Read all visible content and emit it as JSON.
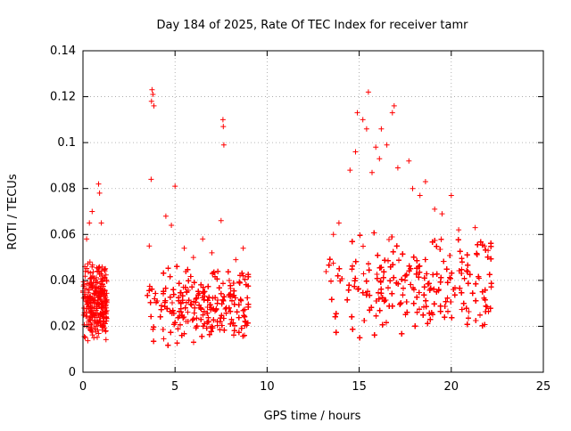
{
  "chart_data": {
    "type": "scatter",
    "title": "Day 184 of 2025, Rate Of TEC Index for receiver tamr",
    "xlabel": "GPS time / hours",
    "ylabel": "ROTI / TECUs",
    "xlim": [
      0,
      25
    ],
    "ylim": [
      0,
      0.14
    ],
    "xticks": [
      0,
      5,
      10,
      15,
      20,
      25
    ],
    "yticks": [
      0,
      0.02,
      0.04,
      0.06,
      0.08,
      0.1,
      0.12,
      0.14
    ],
    "xtick_labels": [
      "0",
      "5",
      "10",
      "15",
      "20",
      "25"
    ],
    "ytick_labels": [
      "0",
      "0.02",
      "0.04",
      "0.06",
      "0.08",
      "0.1",
      "0.12",
      "0.14"
    ],
    "grid": true,
    "marker": "plus",
    "color": "#ff0000",
    "segments": [
      {
        "x_range": [
          0.0,
          1.3
        ],
        "y_base": 0.022,
        "y_spread": 0.018
      },
      {
        "x_range": [
          3.5,
          9.0
        ],
        "y_base": 0.02,
        "y_spread": 0.018
      },
      {
        "x_range": [
          13.2,
          22.2
        ],
        "y_base": 0.026,
        "y_spread": 0.024
      }
    ],
    "outliers": [
      [
        3.75,
        0.123
      ],
      [
        3.8,
        0.121
      ],
      [
        3.72,
        0.118
      ],
      [
        3.85,
        0.116
      ],
      [
        7.6,
        0.11
      ],
      [
        7.62,
        0.107
      ],
      [
        7.65,
        0.099
      ],
      [
        15.5,
        0.122
      ],
      [
        16.9,
        0.116
      ],
      [
        16.8,
        0.113
      ],
      [
        14.9,
        0.113
      ],
      [
        15.2,
        0.11
      ],
      [
        15.4,
        0.106
      ],
      [
        16.2,
        0.106
      ],
      [
        17.7,
        0.092
      ],
      [
        16.5,
        0.099
      ],
      [
        15.9,
        0.098
      ],
      [
        16.1,
        0.093
      ],
      [
        0.85,
        0.082
      ],
      [
        0.9,
        0.078
      ],
      [
        5.0,
        0.081
      ],
      [
        20.0,
        0.077
      ],
      [
        3.7,
        0.084
      ],
      [
        0.35,
        0.065
      ],
      [
        0.5,
        0.07
      ],
      [
        1.0,
        0.065
      ],
      [
        7.5,
        0.066
      ],
      [
        4.5,
        0.068
      ],
      [
        4.8,
        0.064
      ],
      [
        6.5,
        0.058
      ],
      [
        18.6,
        0.083
      ],
      [
        19.1,
        0.071
      ],
      [
        19.5,
        0.069
      ],
      [
        21.3,
        0.063
      ],
      [
        14.5,
        0.088
      ],
      [
        14.8,
        0.096
      ],
      [
        15.7,
        0.087
      ],
      [
        17.1,
        0.089
      ],
      [
        17.9,
        0.08
      ],
      [
        18.3,
        0.077
      ],
      [
        13.6,
        0.06
      ],
      [
        13.9,
        0.065
      ],
      [
        20.4,
        0.062
      ],
      [
        21.8,
        0.055
      ],
      [
        22.0,
        0.053
      ],
      [
        8.7,
        0.054
      ],
      [
        0.1,
        0.046
      ],
      [
        0.2,
        0.058
      ],
      [
        1.2,
        0.045
      ],
      [
        5.5,
        0.054
      ],
      [
        6.0,
        0.05
      ],
      [
        7.0,
        0.052
      ],
      [
        8.3,
        0.049
      ],
      [
        3.6,
        0.055
      ]
    ]
  }
}
